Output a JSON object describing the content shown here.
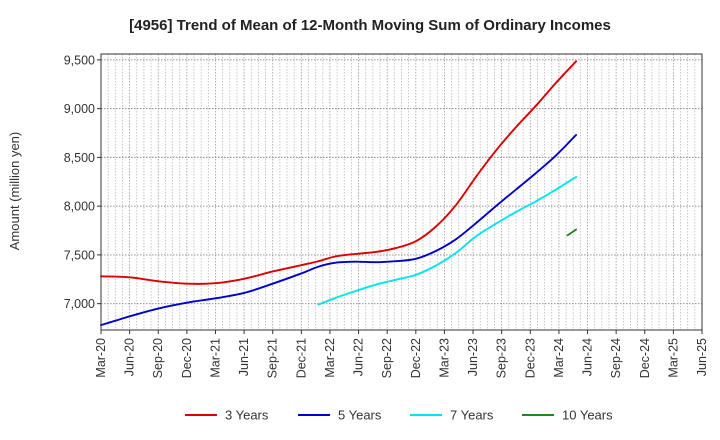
{
  "chart_data": {
    "type": "line",
    "title": "[4956]  Trend of Mean of 12-Month Moving Sum of Ordinary Incomes",
    "xlabel": "",
    "ylabel": "Amount (million yen)",
    "ylim": [
      6730,
      9560
    ],
    "yticks": [
      7000,
      7500,
      8000,
      8500,
      9000,
      9500
    ],
    "ytick_labels": [
      "7,000",
      "7,500",
      "8,000",
      "8,500",
      "9,000",
      "9,500"
    ],
    "categories": [
      "Mar-20",
      "Jun-20",
      "Sep-20",
      "Dec-20",
      "Mar-21",
      "Jun-21",
      "Sep-21",
      "Dec-21",
      "Mar-22",
      "Jun-22",
      "Sep-22",
      "Dec-22",
      "Mar-23",
      "Jun-23",
      "Sep-23",
      "Dec-23",
      "Mar-24",
      "Jun-24",
      "Sep-24",
      "Dec-24",
      "Mar-25",
      "Jun-25"
    ],
    "grid": true,
    "series": [
      {
        "name": "3 Years",
        "color": "#dd0000",
        "values": [
          7280,
          7270,
          7230,
          7205,
          7210,
          7255,
          7330,
          7395,
          7435,
          7485,
          7510,
          7530,
          7570,
          7640,
          7790,
          8010,
          8300,
          8570,
          8810,
          9030,
          9265,
          9485
        ]
      },
      {
        "name": "5 Years",
        "color": "#0000cc",
        "values": [
          6780,
          6870,
          6950,
          7010,
          7055,
          7110,
          7205,
          7310,
          7380,
          7420,
          7430,
          7425,
          7435,
          7460,
          7540,
          7660,
          7825,
          8000,
          8170,
          8340,
          8520,
          8730
        ]
      },
      {
        "name": "7 Years",
        "color": "#00e5ee",
        "values": [
          null,
          null,
          null,
          null,
          null,
          null,
          null,
          null,
          6990,
          7060,
          7130,
          7195,
          7245,
          7295,
          7390,
          7520,
          7690,
          7820,
          7940,
          8050,
          8170,
          8300
        ]
      },
      {
        "name": "10 Years",
        "color": "#228822",
        "values": [
          null,
          null,
          null,
          null,
          null,
          null,
          null,
          null,
          null,
          null,
          null,
          null,
          null,
          null,
          null,
          null,
          null,
          null,
          null,
          null,
          7700,
          7760
        ]
      }
    ],
    "x_points": [
      0,
      1,
      2,
      3,
      4,
      5,
      6,
      7,
      7.6,
      8.2,
      8.9,
      9.6,
      10.3,
      11,
      11.7,
      12.4,
      13.1,
      13.8,
      14.5,
      15.2,
      15.9,
      16.6
    ],
    "x_point_counts": [
      22,
      22,
      22,
      2
    ],
    "legend": {
      "position": "bottom"
    }
  }
}
